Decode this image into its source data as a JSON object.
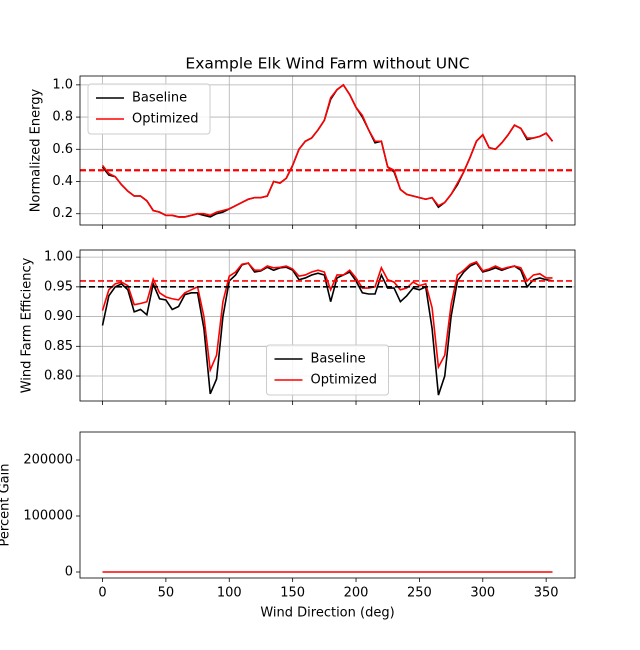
{
  "chart_data": [
    {
      "type": "line",
      "title": "Example Elk Wind Farm without UNC",
      "ylabel": "Normalized Energy",
      "x": [
        0,
        5,
        10,
        15,
        20,
        25,
        30,
        35,
        40,
        45,
        50,
        55,
        60,
        65,
        70,
        75,
        80,
        85,
        90,
        95,
        100,
        105,
        110,
        115,
        120,
        125,
        130,
        135,
        140,
        145,
        150,
        155,
        160,
        165,
        170,
        175,
        180,
        185,
        190,
        195,
        200,
        205,
        210,
        215,
        220,
        225,
        230,
        235,
        240,
        245,
        250,
        255,
        260,
        265,
        270,
        275,
        280,
        285,
        290,
        295,
        300,
        305,
        310,
        315,
        320,
        325,
        330,
        335,
        340,
        345,
        350,
        355
      ],
      "series": [
        {
          "name": "Baseline",
          "color": "#000000",
          "values": [
            0.49,
            0.44,
            0.43,
            0.38,
            0.34,
            0.31,
            0.31,
            0.28,
            0.22,
            0.21,
            0.19,
            0.19,
            0.18,
            0.18,
            0.19,
            0.2,
            0.19,
            0.18,
            0.2,
            0.21,
            0.23,
            0.25,
            0.27,
            0.29,
            0.3,
            0.3,
            0.31,
            0.4,
            0.39,
            0.42,
            0.5,
            0.6,
            0.65,
            0.67,
            0.72,
            0.78,
            0.91,
            0.97,
            1.0,
            0.94,
            0.86,
            0.8,
            0.72,
            0.64,
            0.65,
            0.49,
            0.46,
            0.35,
            0.32,
            0.31,
            0.3,
            0.29,
            0.3,
            0.24,
            0.27,
            0.32,
            0.38,
            0.46,
            0.55,
            0.65,
            0.69,
            0.61,
            0.6,
            0.64,
            0.69,
            0.75,
            0.73,
            0.66,
            0.67,
            0.68,
            0.7,
            0.65
          ]
        },
        {
          "name": "Optimized",
          "color": "#ff0000",
          "values": [
            0.5,
            0.45,
            0.43,
            0.38,
            0.34,
            0.31,
            0.31,
            0.28,
            0.22,
            0.21,
            0.19,
            0.19,
            0.18,
            0.18,
            0.19,
            0.2,
            0.2,
            0.19,
            0.21,
            0.22,
            0.23,
            0.25,
            0.27,
            0.29,
            0.3,
            0.3,
            0.31,
            0.4,
            0.39,
            0.42,
            0.5,
            0.6,
            0.65,
            0.67,
            0.72,
            0.78,
            0.92,
            0.97,
            1.0,
            0.94,
            0.86,
            0.81,
            0.72,
            0.65,
            0.65,
            0.49,
            0.47,
            0.35,
            0.32,
            0.31,
            0.3,
            0.29,
            0.3,
            0.25,
            0.27,
            0.32,
            0.39,
            0.46,
            0.55,
            0.65,
            0.69,
            0.61,
            0.6,
            0.64,
            0.69,
            0.75,
            0.73,
            0.67,
            0.67,
            0.68,
            0.7,
            0.65
          ]
        }
      ],
      "hlines": [
        {
          "value": 0.47,
          "color": "#ff0000"
        }
      ],
      "xlim": [
        -17.75,
        372.75
      ],
      "xticks": [
        0,
        50,
        100,
        150,
        200,
        250,
        300,
        350
      ],
      "xtick_labels": false,
      "ylim": [
        0.13,
        1.055
      ],
      "yticks": [
        0.2,
        0.4,
        0.6,
        0.8,
        {
          "value": 1,
          "label": "1.0"
        }
      ],
      "grid": true,
      "legend": "upper left"
    },
    {
      "type": "line",
      "ylabel": "Wind Farm Efficiency",
      "x": [
        0,
        5,
        10,
        15,
        20,
        25,
        30,
        35,
        40,
        45,
        50,
        55,
        60,
        65,
        70,
        75,
        80,
        85,
        90,
        95,
        100,
        105,
        110,
        115,
        120,
        125,
        130,
        135,
        140,
        145,
        150,
        155,
        160,
        165,
        170,
        175,
        180,
        185,
        190,
        195,
        200,
        205,
        210,
        215,
        220,
        225,
        230,
        235,
        240,
        245,
        250,
        255,
        260,
        265,
        270,
        275,
        280,
        285,
        290,
        295,
        300,
        305,
        310,
        315,
        320,
        325,
        330,
        335,
        340,
        345,
        350,
        355
      ],
      "series": [
        {
          "name": "Baseline",
          "color": "#000000",
          "values": [
            0.885,
            0.935,
            0.95,
            0.955,
            0.945,
            0.908,
            0.912,
            0.903,
            0.955,
            0.93,
            0.928,
            0.912,
            0.917,
            0.937,
            0.94,
            0.94,
            0.88,
            0.77,
            0.795,
            0.9,
            0.96,
            0.97,
            0.987,
            0.99,
            0.975,
            0.977,
            0.983,
            0.978,
            0.982,
            0.983,
            0.978,
            0.962,
            0.965,
            0.97,
            0.973,
            0.97,
            0.925,
            0.965,
            0.97,
            0.975,
            0.96,
            0.94,
            0.938,
            0.938,
            0.97,
            0.948,
            0.948,
            0.925,
            0.935,
            0.948,
            0.945,
            0.95,
            0.88,
            0.768,
            0.8,
            0.9,
            0.96,
            0.975,
            0.985,
            0.99,
            0.975,
            0.978,
            0.982,
            0.978,
            0.982,
            0.985,
            0.978,
            0.95,
            0.962,
            0.965,
            0.962,
            0.96
          ]
        },
        {
          "name": "Optimized",
          "color": "#ff0000",
          "values": [
            0.91,
            0.945,
            0.955,
            0.958,
            0.952,
            0.92,
            0.922,
            0.925,
            0.963,
            0.94,
            0.933,
            0.93,
            0.928,
            0.94,
            0.945,
            0.95,
            0.9,
            0.81,
            0.835,
            0.925,
            0.968,
            0.975,
            0.988,
            0.99,
            0.978,
            0.978,
            0.985,
            0.982,
            0.983,
            0.985,
            0.98,
            0.968,
            0.97,
            0.975,
            0.978,
            0.975,
            0.945,
            0.97,
            0.97,
            0.978,
            0.965,
            0.948,
            0.948,
            0.95,
            0.982,
            0.962,
            0.958,
            0.945,
            0.948,
            0.958,
            0.952,
            0.955,
            0.915,
            0.815,
            0.835,
            0.92,
            0.97,
            0.978,
            0.988,
            0.992,
            0.977,
            0.98,
            0.985,
            0.98,
            0.983,
            0.985,
            0.982,
            0.96,
            0.97,
            0.972,
            0.965,
            0.965
          ]
        }
      ],
      "hlines": [
        {
          "value": 0.95,
          "color": "#000000"
        },
        {
          "value": 0.96,
          "color": "#ff0000"
        }
      ],
      "xlim": [
        -17.75,
        372.75
      ],
      "xticks": [
        0,
        50,
        100,
        150,
        200,
        250,
        300,
        350
      ],
      "xtick_labels": false,
      "ylim": [
        0.758,
        1.012
      ],
      "yticks": [
        {
          "value": 0.8,
          "label": "0.80"
        },
        0.85,
        {
          "value": 0.9,
          "label": "0.90"
        },
        0.95,
        {
          "value": 1,
          "label": "1.00"
        }
      ],
      "grid": true,
      "legend": "lower center"
    },
    {
      "type": "line",
      "ylabel": "Percent Gain",
      "xlabel": "Wind Direction (deg)",
      "x": [
        0,
        5,
        10,
        15,
        20,
        25,
        30,
        35,
        40,
        45,
        50,
        55,
        60,
        65,
        70,
        75,
        80,
        85,
        90,
        95,
        100,
        105,
        110,
        115,
        120,
        125,
        130,
        135,
        140,
        145,
        150,
        155,
        160,
        165,
        170,
        175,
        180,
        185,
        190,
        195,
        200,
        205,
        210,
        215,
        220,
        225,
        230,
        235,
        240,
        245,
        250,
        255,
        260,
        265,
        270,
        275,
        280,
        285,
        290,
        295,
        300,
        305,
        310,
        315,
        320,
        325,
        330,
        335,
        340,
        345,
        350,
        355
      ],
      "series": [
        {
          "color": "#ff0000",
          "values": [
            0,
            0,
            0,
            0,
            0,
            0,
            0,
            0,
            0,
            0,
            0,
            0,
            0,
            0,
            0,
            0,
            0,
            0,
            0,
            0,
            0,
            0,
            0,
            0,
            0,
            0,
            0,
            0,
            0,
            0,
            0,
            0,
            0,
            0,
            0,
            0,
            0,
            0,
            0,
            0,
            0,
            0,
            0,
            0,
            0,
            0,
            0,
            0,
            0,
            0,
            0,
            0,
            0,
            0,
            0,
            0,
            0,
            0,
            0,
            0,
            0,
            0,
            0,
            0,
            0,
            0,
            0,
            0,
            0,
            0,
            0,
            0
          ]
        }
      ],
      "xlim": [
        -17.75,
        372.75
      ],
      "xticks": [
        0,
        50,
        100,
        150,
        200,
        250,
        300,
        350
      ],
      "ylim": [
        -10700,
        250000
      ],
      "yticks": [
        0,
        100000,
        200000
      ],
      "grid": false
    }
  ]
}
